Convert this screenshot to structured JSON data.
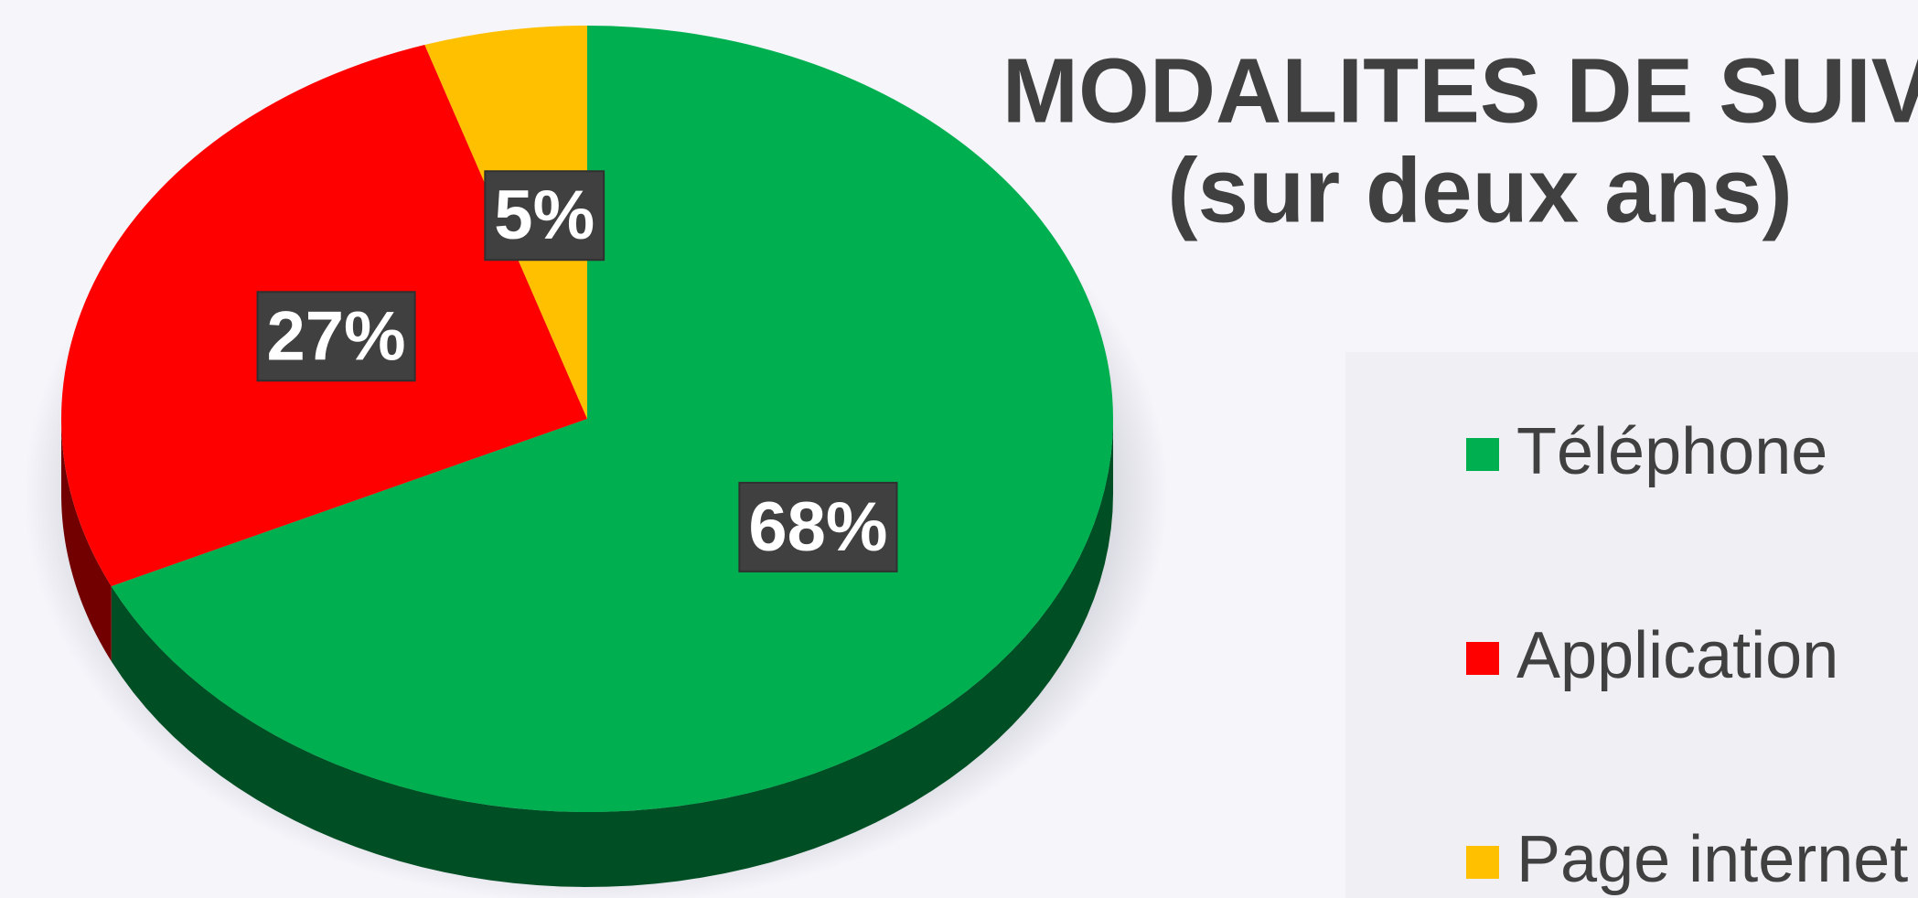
{
  "chart_data": {
    "type": "pie3d",
    "title": "MODALITES DE SUIVI",
    "subtitle": "(sur deux ans)",
    "categories": [
      "Téléphone",
      "Application",
      "Page internet"
    ],
    "values": [
      68,
      27,
      5
    ],
    "value_labels": [
      "68%",
      "27%",
      "5%"
    ],
    "colors": [
      "#00b050",
      "#ff0000",
      "#ffc000"
    ],
    "legend": "right"
  }
}
